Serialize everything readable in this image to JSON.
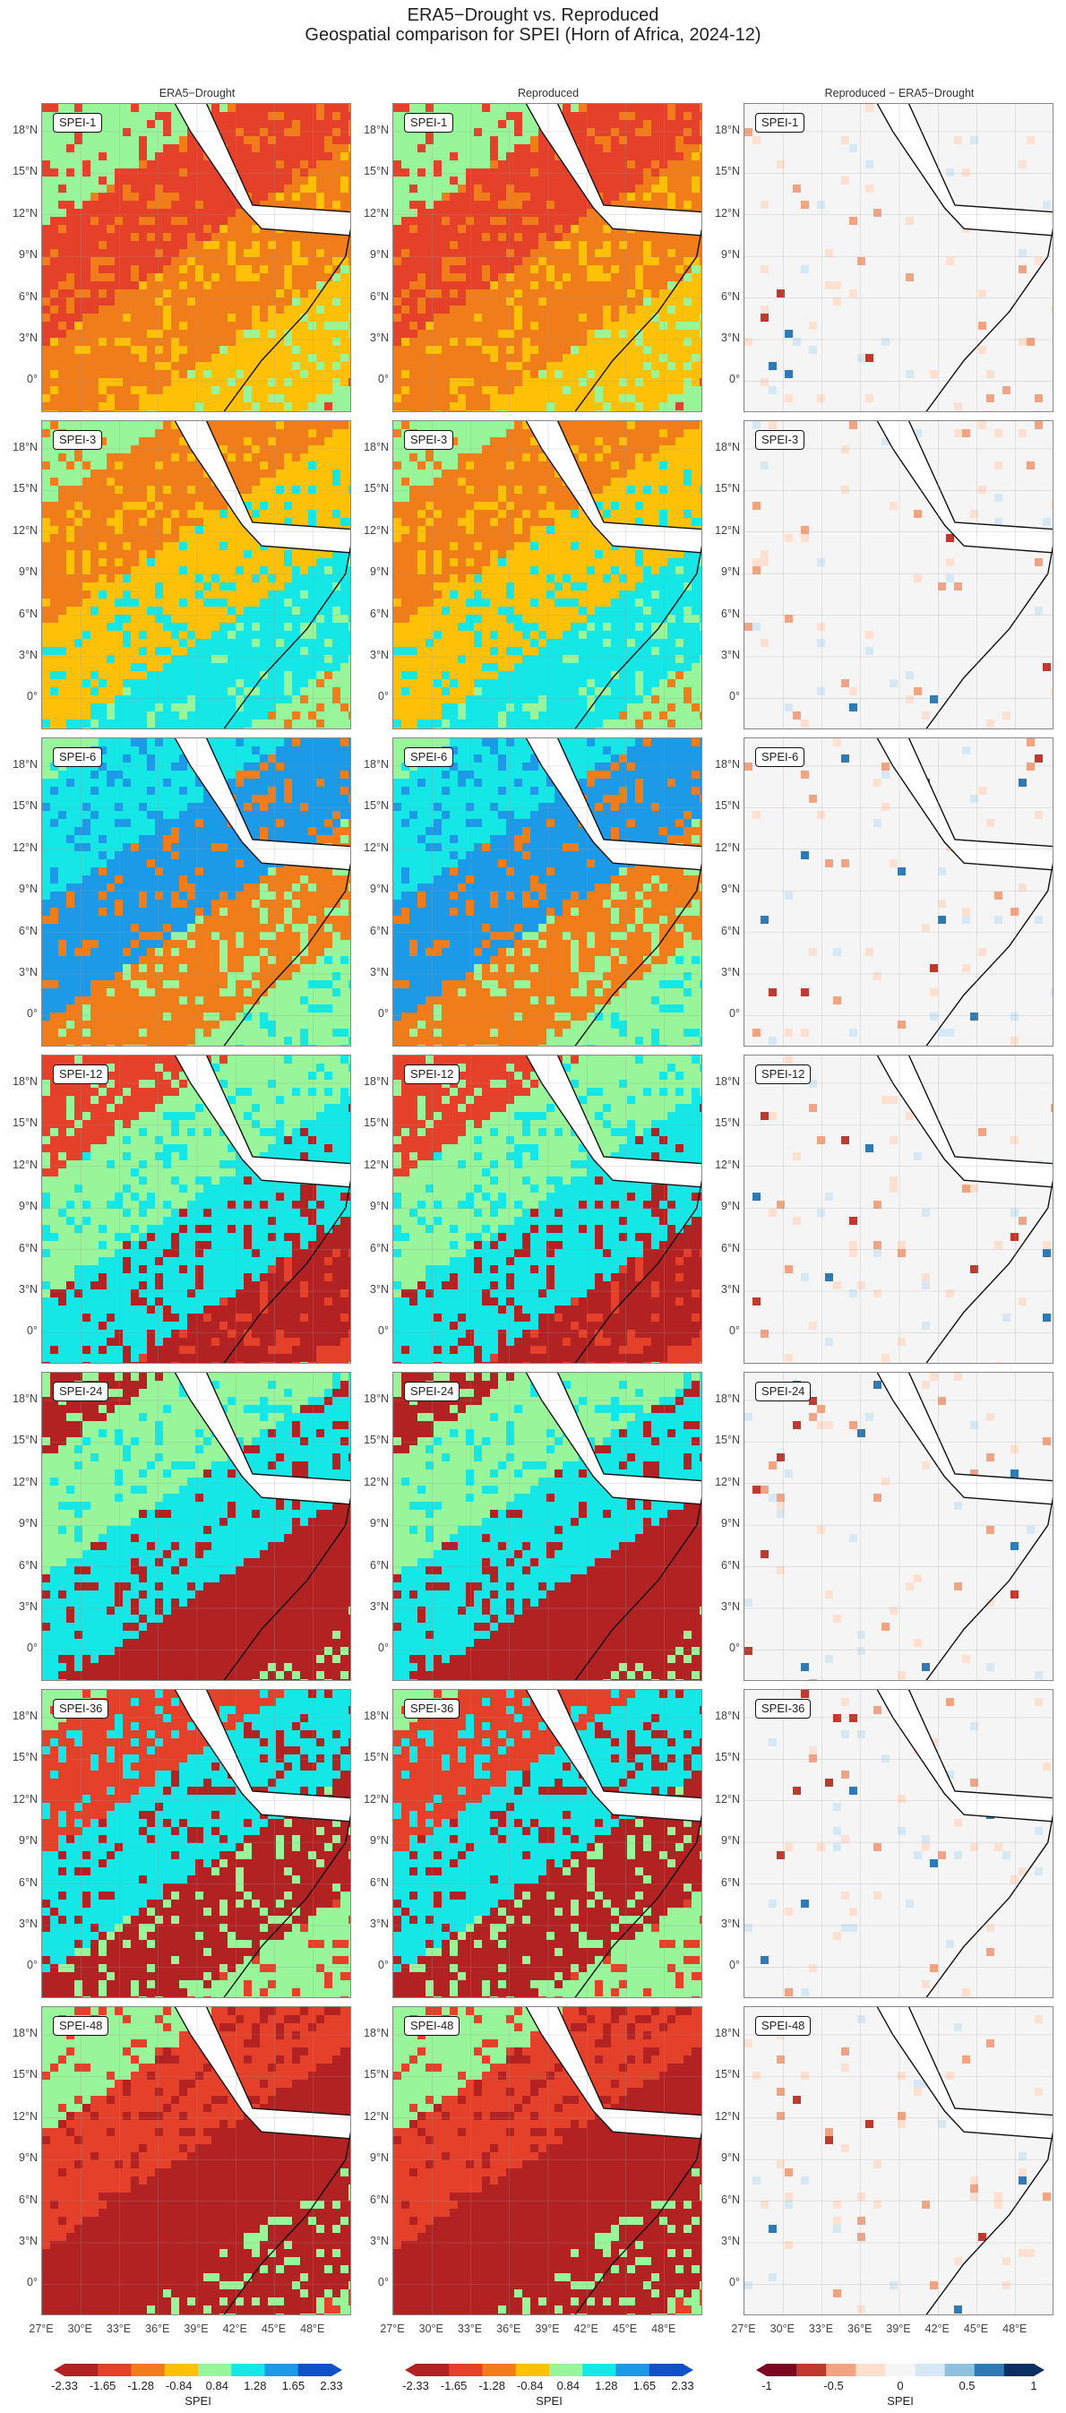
{
  "header": {
    "title": "ERA5−Drought vs. Reproduced",
    "subtitle": "Geospatial comparison for SPEI (Horn of Africa, 2024-12)"
  },
  "columns": [
    "ERA5−Drought",
    "Reproduced",
    "Reproduced − ERA5−Drought"
  ],
  "rows": [
    "SPEI-1",
    "SPEI-3",
    "SPEI-6",
    "SPEI-12",
    "SPEI-24",
    "SPEI-36",
    "SPEI-48"
  ],
  "lat_ticks": [
    "18°N",
    "15°N",
    "12°N",
    "9°N",
    "6°N",
    "3°N",
    "0°"
  ],
  "lon_ticks": [
    "27°E",
    "30°E",
    "33°E",
    "36°E",
    "39°E",
    "42°E",
    "45°E",
    "48°E"
  ],
  "colorbars": {
    "spei": {
      "title": "SPEI",
      "ticks": [
        "-2.33",
        "-1.65",
        "-1.28",
        "-0.84",
        "0.84",
        "1.28",
        "1.65",
        "2.33"
      ],
      "colors": [
        "#b22222",
        "#e4402a",
        "#f07c1a",
        "#ffc107",
        "#98f59a",
        "#15e7e7",
        "#1c9ae8",
        "#1050c8"
      ]
    },
    "diff": {
      "title": "SPEI",
      "ticks": [
        "-1",
        "-0.5",
        "0",
        "0.5",
        "1"
      ],
      "colors": [
        "#7a0820",
        "#c0392f",
        "#f2a482",
        "#fde0d0",
        "#f5f5f5",
        "#d6e8f3",
        "#8fc1de",
        "#2f79b5",
        "#0b2e63"
      ]
    }
  }
}
